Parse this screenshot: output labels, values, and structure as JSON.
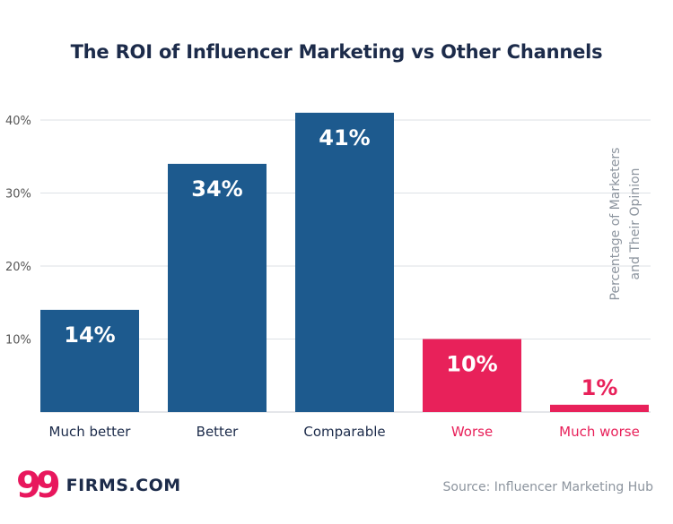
{
  "title": "The ROI of Influencer Marketing vs Other Channels",
  "chart_data": {
    "type": "bar",
    "title": "The ROI of Influencer Marketing vs Other Channels",
    "categories": [
      "Much better",
      "Better",
      "Comparable",
      "Worse",
      "Much worse"
    ],
    "values": [
      14,
      34,
      41,
      10,
      1
    ],
    "value_labels": [
      "14%",
      "34%",
      "41%",
      "10%",
      "1%"
    ],
    "colors": [
      "#1d5a8e",
      "#1d5a8e",
      "#1d5a8e",
      "#e8215a",
      "#e8215a"
    ],
    "ylabel_lines": [
      "Percentage of Marketers",
      "and Their Opinion"
    ],
    "yticks": [
      10,
      20,
      30,
      40
    ],
    "ytick_labels": [
      "10%",
      "20%",
      "30%",
      "40%"
    ],
    "ylim": [
      0,
      41
    ],
    "grid": true
  },
  "footer": {
    "logo_mark": "99",
    "logo_text": "FIRMS.COM",
    "source": "Source: Influencer Marketing Hub"
  },
  "colors": {
    "positive": "#1d5a8e",
    "negative": "#e8215a",
    "title": "#1c2b4a"
  }
}
